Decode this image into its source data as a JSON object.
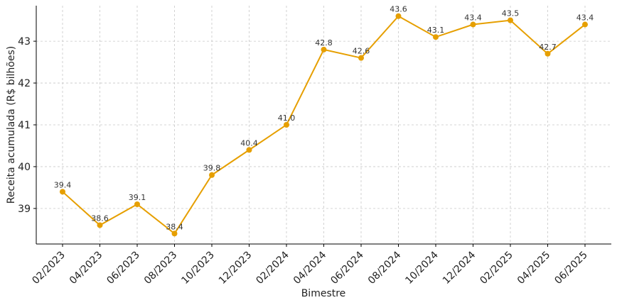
{
  "chart_data": {
    "type": "line",
    "title": "",
    "xlabel": "Bimestre",
    "ylabel": "Receita acumulada (R$ bilhões)",
    "categories": [
      "02/2023",
      "04/2023",
      "06/2023",
      "08/2023",
      "10/2023",
      "12/2023",
      "02/2024",
      "04/2024",
      "06/2024",
      "08/2024",
      "10/2024",
      "12/2024",
      "02/2025",
      "04/2025",
      "06/2025"
    ],
    "values": [
      39.4,
      38.6,
      39.1,
      38.4,
      39.8,
      40.4,
      41.0,
      42.8,
      42.6,
      43.6,
      43.1,
      43.4,
      43.5,
      42.7,
      43.4
    ],
    "data_labels": [
      "39.4",
      "38.6",
      "39.1",
      "38.4",
      "39.8",
      "40.4",
      "41.0",
      "42.8",
      "42.6",
      "43.6",
      "43.1",
      "43.4",
      "43.5",
      "42.7",
      "43.4"
    ],
    "ylim": [
      38.15,
      43.85
    ],
    "yticks": [
      39,
      40,
      41,
      42,
      43
    ],
    "ytick_labels": [
      "39",
      "40",
      "41",
      "42",
      "43"
    ],
    "grid": true,
    "line_color": "#E69F00"
  }
}
